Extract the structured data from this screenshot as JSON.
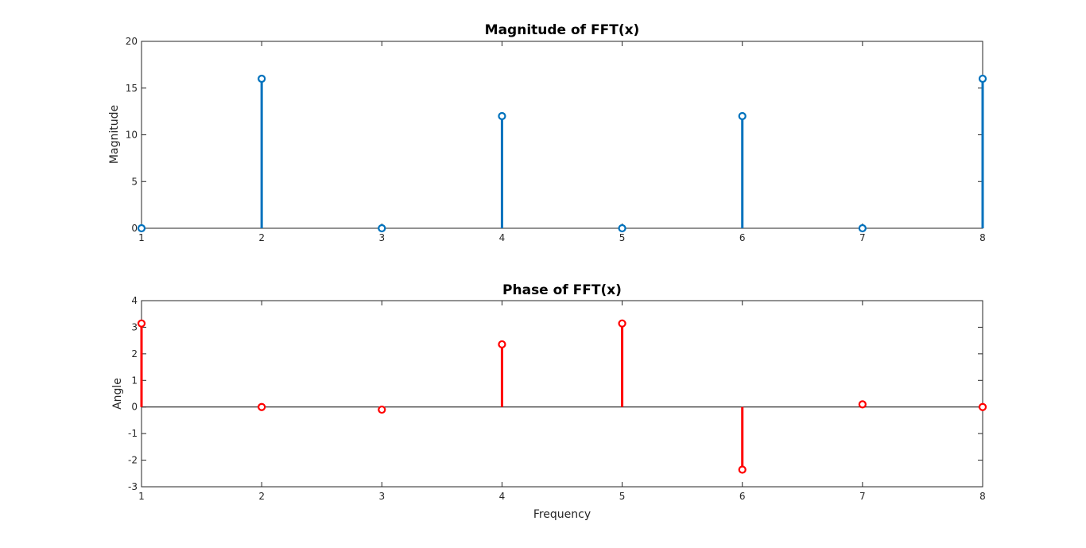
{
  "chart_data": [
    {
      "type": "stem",
      "title": "Magnitude of FFT(x)",
      "xlabel": "",
      "ylabel": "Magnitude",
      "x": [
        1,
        2,
        3,
        4,
        5,
        6,
        7,
        8
      ],
      "values": [
        0,
        16,
        0,
        12,
        0,
        12,
        0,
        16
      ],
      "xlim": [
        1,
        8
      ],
      "ylim": [
        0,
        20
      ],
      "xticks": [
        "1",
        "2",
        "3",
        "4",
        "5",
        "6",
        "7",
        "8"
      ],
      "yticks": [
        "0",
        "5",
        "10",
        "15",
        "20"
      ],
      "color": "#0072BD",
      "grid": false
    },
    {
      "type": "stem",
      "title": "Phase of FFT(x)",
      "xlabel": "Frequency",
      "ylabel": "Angle",
      "x": [
        1,
        2,
        3,
        4,
        5,
        6,
        7,
        8
      ],
      "values": [
        3.1416,
        0,
        -0.0997,
        2.3562,
        3.1416,
        -2.3562,
        0.0997,
        0
      ],
      "xlim": [
        1,
        8
      ],
      "ylim": [
        -3,
        4
      ],
      "xticks": [
        "1",
        "2",
        "3",
        "4",
        "5",
        "6",
        "7",
        "8"
      ],
      "yticks": [
        "-3",
        "-2",
        "-1",
        "0",
        "1",
        "2",
        "3",
        "4"
      ],
      "color": "#FF0000",
      "grid": false
    }
  ]
}
